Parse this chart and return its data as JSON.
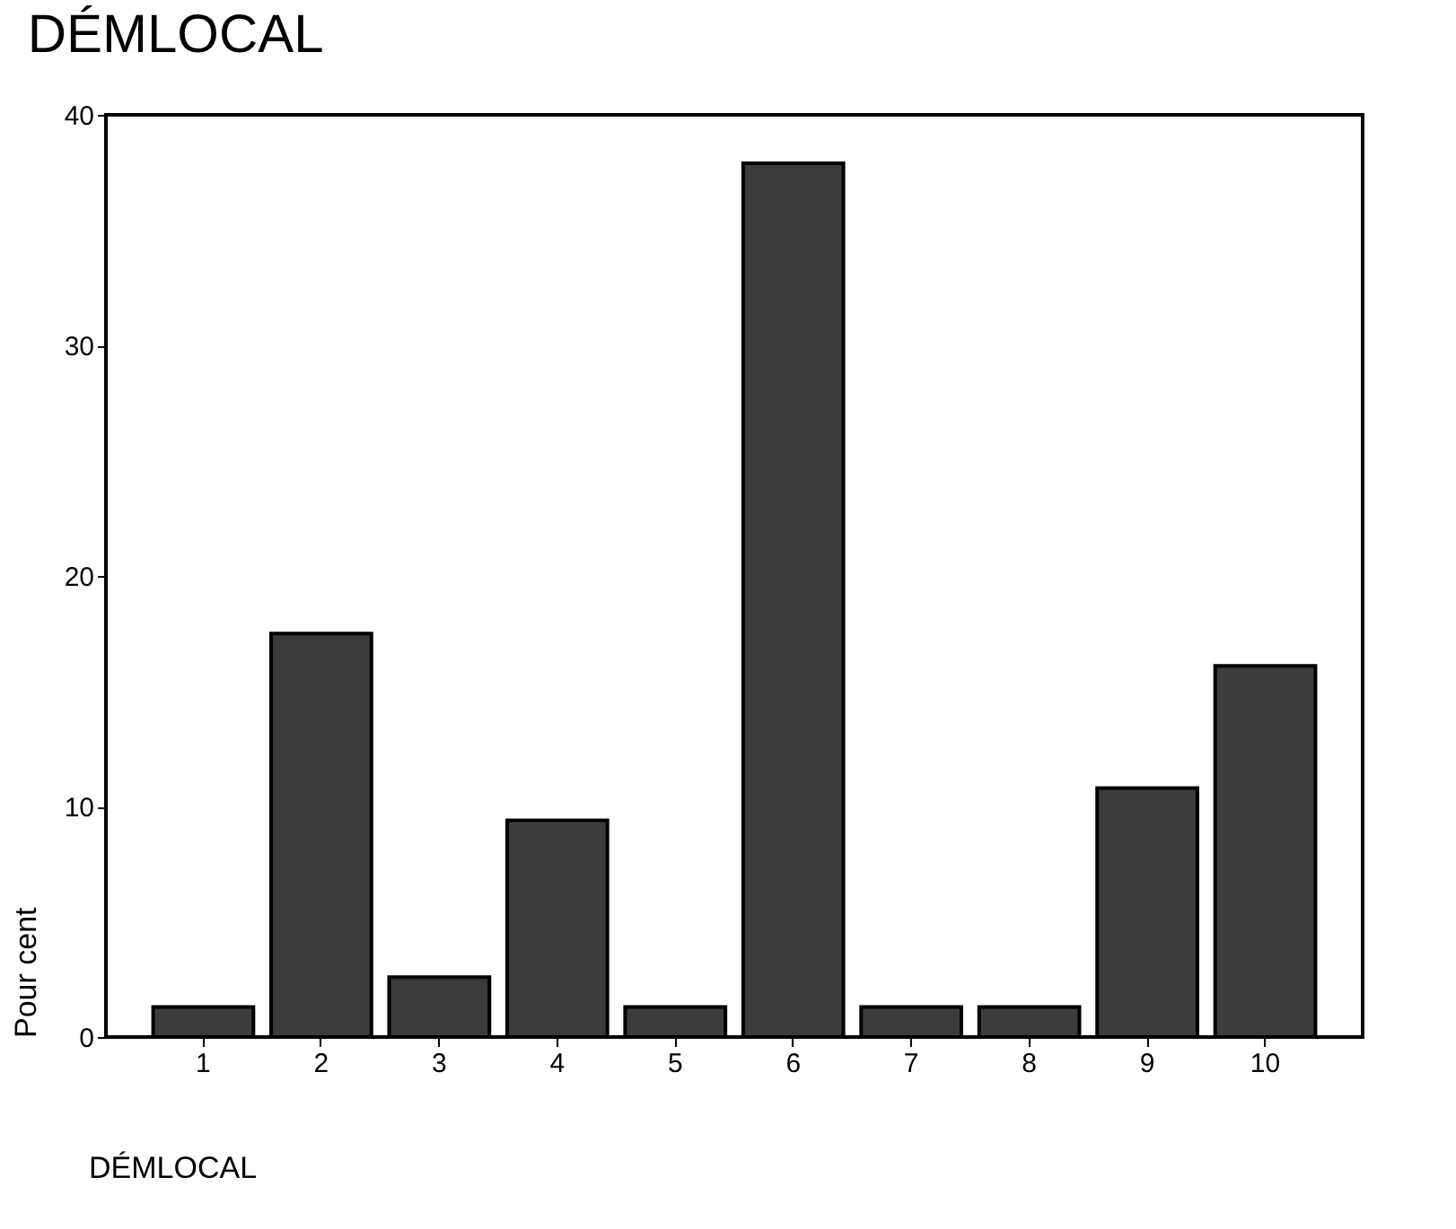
{
  "chart_data": {
    "type": "bar",
    "title": "DÉMLOCAL",
    "xlabel": "DÉMLOCAL",
    "ylabel": "Pour cent",
    "categories": [
      "1",
      "2",
      "3",
      "4",
      "5",
      "6",
      "7",
      "8",
      "9",
      "10"
    ],
    "values": [
      1.3,
      17.5,
      2.6,
      9.4,
      1.3,
      37.9,
      1.3,
      1.3,
      10.8,
      16.1
    ],
    "color": "#3c3c3c",
    "ylim": [
      0,
      40
    ],
    "yticks": [
      0,
      10,
      20,
      30,
      40
    ],
    "grid": false
  }
}
